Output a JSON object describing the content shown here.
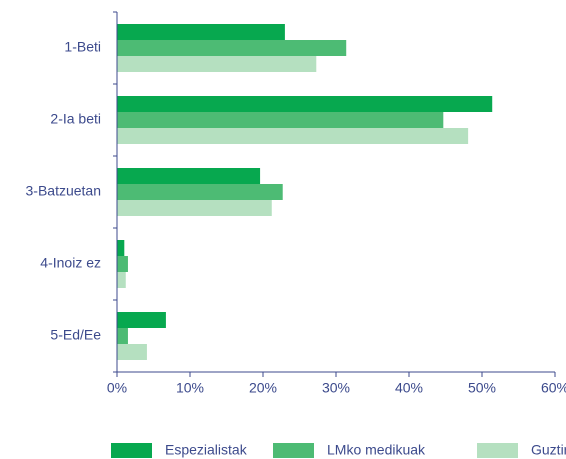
{
  "chart_data": {
    "type": "bar",
    "orientation": "horizontal",
    "categories": [
      "1-Beti",
      "2-Ia beti",
      "3-Batzuetan",
      "4-Inoiz ez",
      "5-Ed/Ee"
    ],
    "series": [
      {
        "name": "Espezialistak",
        "color": "#07a84f",
        "values": [
          23,
          51.4,
          19.6,
          1,
          6.7
        ]
      },
      {
        "name": "LMko medikuak",
        "color": "#4dbb74",
        "values": [
          31.4,
          44.7,
          22.7,
          1.5,
          1.5
        ]
      },
      {
        "name": "Guztira",
        "color": "#b5e0c0",
        "values": [
          27.3,
          48.1,
          21.2,
          1.2,
          4.1
        ]
      }
    ],
    "xlim": [
      0,
      60
    ],
    "xticks": [
      {
        "value": 0,
        "label": "0%"
      },
      {
        "value": 10,
        "label": "10%"
      },
      {
        "value": 20,
        "label": "20%"
      },
      {
        "value": 30,
        "label": "30%"
      },
      {
        "value": 40,
        "label": "40%"
      },
      {
        "value": 50,
        "label": "50%"
      },
      {
        "value": 60,
        "label": "60%"
      }
    ],
    "legend": "bottom"
  }
}
